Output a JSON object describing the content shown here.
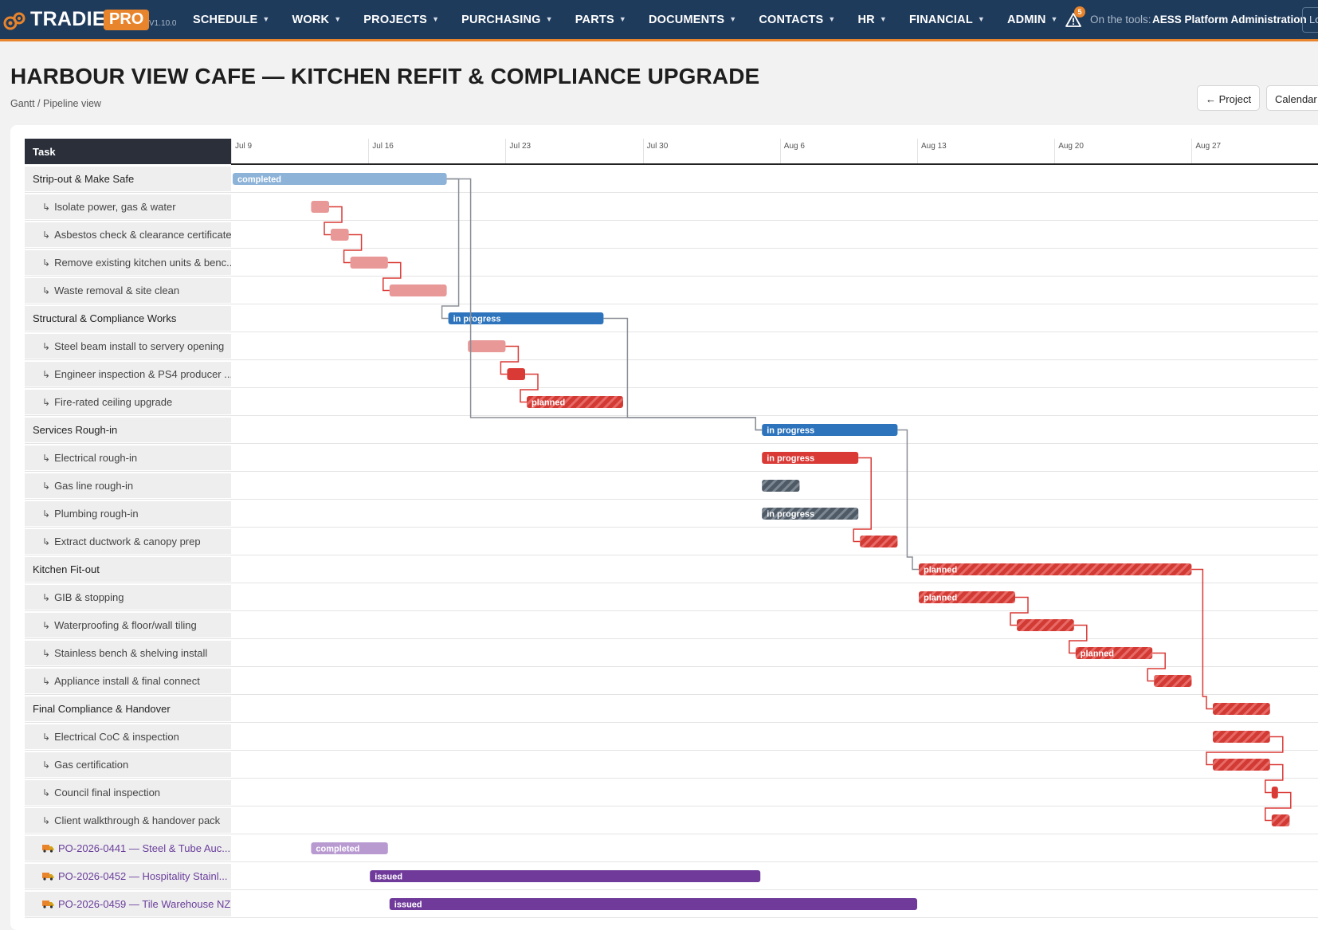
{
  "nav": {
    "brand": "TRADIE",
    "badge": "PRO",
    "version": "V1.10.0",
    "items": [
      {
        "label": "SCHEDULE"
      },
      {
        "label": "WORK"
      },
      {
        "label": "PROJECTS"
      },
      {
        "label": "PURCHASING"
      },
      {
        "label": "PARTS"
      },
      {
        "label": "DOCUMENTS"
      },
      {
        "label": "CONTACTS"
      },
      {
        "label": "HR"
      },
      {
        "label": "FINANCIAL"
      },
      {
        "label": "ADMIN"
      }
    ],
    "alert_count": "5",
    "user_prefix": "On the tools:",
    "user_name": "AESS Platform Administration",
    "logout_label": "Lo"
  },
  "header": {
    "title": "HARBOUR VIEW CAFE — KITCHEN REFIT & COMPLIANCE UPGRADE",
    "breadcrumb": "Gantt / Pipeline view",
    "project_button": "← Project",
    "calendar_button": "Calendar"
  },
  "gantt": {
    "task_column_label": "Task",
    "dates": [
      "Jul 9",
      "Jul 16",
      "Jul 23",
      "Jul 30",
      "Aug 6",
      "Aug 13",
      "Aug 20",
      "Aug 27"
    ],
    "colors": {
      "completed": "#8db3d9",
      "in_progress": "#2d74bd",
      "sub_completed": "#e89896",
      "sub_active": "#d93a36",
      "sub_planned": "#d23a34",
      "dark": "#4e5a66",
      "po_completed": "#b89ad1",
      "po_issued": "#6f3a9a",
      "link_parent": "#8a8f96",
      "link_child": "#d93a36"
    },
    "tasks": [
      {
        "label": "Strip-out & Make Safe",
        "kind": "parent",
        "start": 0,
        "end": 11,
        "style": "completed",
        "bar_label": "completed"
      },
      {
        "label": "Isolate power, gas & water",
        "kind": "sub",
        "start": 4,
        "end": 5,
        "style": "sub_completed",
        "bar_label": ""
      },
      {
        "label": "Asbestos check & clearance certificate",
        "kind": "sub",
        "start": 5,
        "end": 6,
        "style": "sub_completed",
        "bar_label": ""
      },
      {
        "label": "Remove existing kitchen units & benc...",
        "kind": "sub",
        "start": 6,
        "end": 8,
        "style": "sub_completed",
        "bar_label": ""
      },
      {
        "label": "Waste removal & site clean",
        "kind": "sub",
        "start": 8,
        "end": 11,
        "style": "sub_completed",
        "bar_label": ""
      },
      {
        "label": "Structural & Compliance Works",
        "kind": "parent",
        "start": 11,
        "end": 19,
        "style": "in_progress",
        "bar_label": "in progress"
      },
      {
        "label": "Steel beam install to servery opening",
        "kind": "sub",
        "start": 12,
        "end": 14,
        "style": "sub_completed",
        "bar_label": ""
      },
      {
        "label": "Engineer inspection & PS4 producer ...",
        "kind": "sub",
        "start": 14,
        "end": 15,
        "style": "sub_active",
        "bar_label": ""
      },
      {
        "label": "Fire-rated ceiling upgrade",
        "kind": "sub",
        "start": 15,
        "end": 20,
        "style": "sub_planned",
        "bar_label": "planned"
      },
      {
        "label": "Services Rough-in",
        "kind": "parent",
        "start": 27,
        "end": 34,
        "style": "in_progress",
        "bar_label": "in progress"
      },
      {
        "label": "Electrical rough-in",
        "kind": "sub",
        "start": 27,
        "end": 32,
        "style": "sub_active",
        "bar_label": "in progress"
      },
      {
        "label": "Gas line rough-in",
        "kind": "sub",
        "start": 27,
        "end": 29,
        "style": "dark_hatched",
        "bar_label": ""
      },
      {
        "label": "Plumbing rough-in",
        "kind": "sub",
        "start": 27,
        "end": 32,
        "style": "dark_hatched",
        "bar_label": "in progress"
      },
      {
        "label": "Extract ductwork & canopy prep",
        "kind": "sub",
        "start": 32,
        "end": 34,
        "style": "sub_planned",
        "bar_label": ""
      },
      {
        "label": "Kitchen Fit-out",
        "kind": "parent",
        "start": 35,
        "end": 49,
        "style": "sub_planned",
        "bar_label": "planned"
      },
      {
        "label": "GIB & stopping",
        "kind": "sub",
        "start": 35,
        "end": 40,
        "style": "sub_planned",
        "bar_label": "planned"
      },
      {
        "label": "Waterproofing & floor/wall tiling",
        "kind": "sub",
        "start": 40,
        "end": 43,
        "style": "sub_planned",
        "bar_label": ""
      },
      {
        "label": "Stainless bench & shelving install",
        "kind": "sub",
        "start": 43,
        "end": 47,
        "style": "sub_planned",
        "bar_label": "planned"
      },
      {
        "label": "Appliance install & final connect",
        "kind": "sub",
        "start": 47,
        "end": 49,
        "style": "sub_planned",
        "bar_label": ""
      },
      {
        "label": "Final Compliance & Handover",
        "kind": "parent",
        "start": 50,
        "end": 53,
        "style": "sub_planned",
        "bar_label": ""
      },
      {
        "label": "Electrical CoC & inspection",
        "kind": "sub",
        "start": 50,
        "end": 53,
        "style": "sub_planned",
        "bar_label": ""
      },
      {
        "label": "Gas certification",
        "kind": "sub",
        "start": 50,
        "end": 53,
        "style": "sub_planned",
        "bar_label": ""
      },
      {
        "label": "Council final inspection",
        "kind": "sub",
        "start": 53,
        "end": 53.4,
        "style": "sub_active",
        "bar_label": ""
      },
      {
        "label": "Client walkthrough & handover pack",
        "kind": "sub",
        "start": 53,
        "end": 54,
        "style": "sub_planned",
        "bar_label": ""
      },
      {
        "label": "PO-2026-0441 — Steel & Tube Auc...",
        "kind": "po",
        "start": 4,
        "end": 8,
        "style": "po_completed",
        "bar_label": "completed"
      },
      {
        "label": "PO-2026-0452 — Hospitality Stainl...",
        "kind": "po",
        "start": 7,
        "end": 27,
        "style": "po_issued",
        "bar_label": "issued"
      },
      {
        "label": "PO-2026-0459 — Tile Warehouse NZ",
        "kind": "po",
        "start": 8,
        "end": 35,
        "style": "po_issued",
        "bar_label": "issued"
      }
    ]
  }
}
